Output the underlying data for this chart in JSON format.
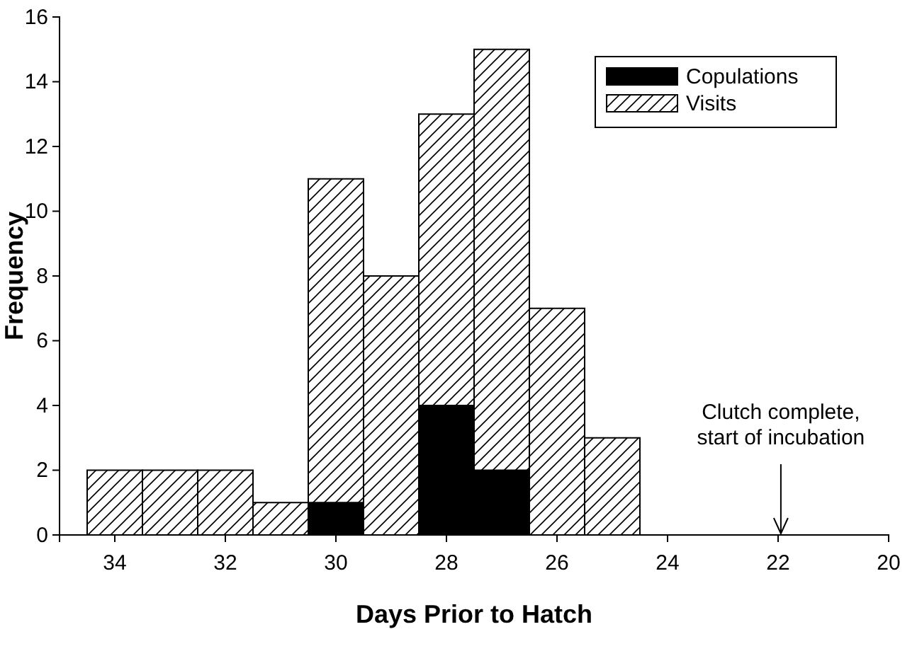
{
  "chart_data": {
    "type": "bar",
    "stacked": true,
    "xlabel": "Days Prior to Hatch",
    "ylabel": "Frequency",
    "x": [
      34,
      33,
      32,
      31,
      30,
      29,
      28,
      27,
      26,
      25
    ],
    "series": [
      {
        "name": "Copulations",
        "color": "#000000",
        "values": [
          0,
          0,
          0,
          0,
          1,
          0,
          4,
          2,
          0,
          0
        ]
      },
      {
        "name": "Visits",
        "color": "#000000",
        "values": [
          2,
          2,
          2,
          1,
          10,
          8,
          9,
          13,
          7,
          3
        ]
      }
    ],
    "xlim": [
      35,
      20
    ],
    "xticks": [
      34,
      32,
      30,
      28,
      26,
      24,
      22,
      20
    ],
    "ylim": [
      0,
      16
    ],
    "yticks": [
      0,
      2,
      4,
      6,
      8,
      10,
      12,
      14,
      16
    ],
    "legend": "top right",
    "grid": false,
    "annotations": [
      "Clutch complete,\nstart of incubation"
    ]
  }
}
